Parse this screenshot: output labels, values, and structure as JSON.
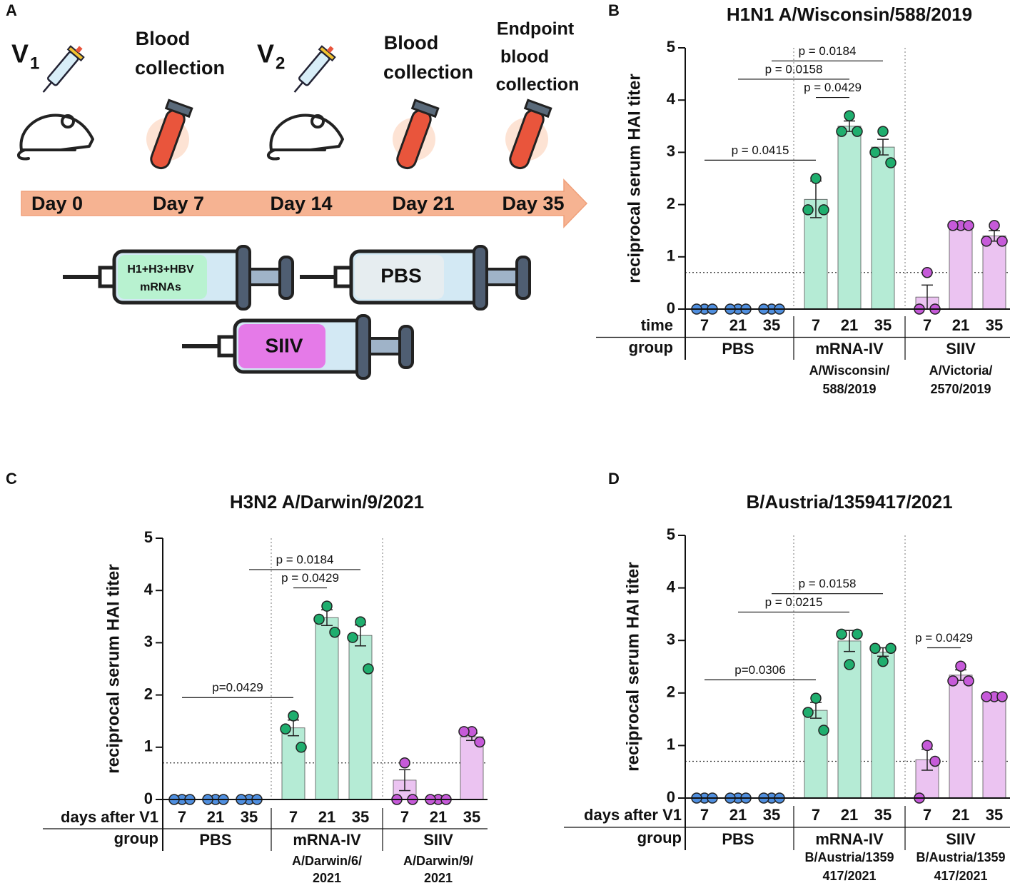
{
  "timeline": {
    "letter": "A",
    "vaccinations": [
      {
        "label": "V",
        "sub": "1"
      },
      {
        "label": "V",
        "sub": "2"
      }
    ],
    "collections": [
      [
        "Blood",
        "collection"
      ],
      [
        "Blood",
        "collection"
      ],
      [
        "Endpoint",
        "blood",
        "collection"
      ]
    ],
    "days": [
      "Day 0",
      "Day 7",
      "Day 14",
      "Day 21",
      "Day 35"
    ],
    "syringes": [
      [
        "H1+H3+HBV",
        "mRNAs"
      ],
      [
        "PBS"
      ],
      [
        "SIIV"
      ]
    ]
  },
  "chart_data": [
    {
      "type": "bar",
      "panel": "B",
      "title": "H1N1 A/Wisconsin/588/2019",
      "ylabel": "reciprocal serum HAI titer",
      "ylim": [
        0,
        5
      ],
      "yticks": [
        0,
        1,
        2,
        3,
        4,
        5
      ],
      "threshold": 0.7,
      "row_labels": [
        "time",
        "group"
      ],
      "categories": [
        "7",
        "21",
        "35",
        "7",
        "21",
        "35",
        "7",
        "21",
        "35"
      ],
      "groups": [
        {
          "name": "PBS",
          "bar_color": "#ffffff",
          "point_color": "#4f8fe0"
        },
        {
          "name": "mRNA-IV",
          "bar_color": "#b5ebd5",
          "point_color": "#1fae6e",
          "subtitle": [
            "A/Wisconsin/",
            "588/2019"
          ],
          "subtitle_color": "#1a9e5f"
        },
        {
          "name": "SIIV",
          "bar_color": "#ebc3f1",
          "point_color": "#c65ad9",
          "subtitle": [
            "A/Victoria/",
            "2570/2019"
          ],
          "subtitle_color": "#c056d4"
        }
      ],
      "values": [
        0,
        0,
        0,
        2.1,
        3.5,
        3.1,
        0.23,
        1.6,
        1.4
      ],
      "errors": [
        0,
        0,
        0,
        0.35,
        0.1,
        0.15,
        0.23,
        0,
        0.1
      ],
      "points": [
        [
          0,
          0,
          0
        ],
        [
          0,
          0,
          0
        ],
        [
          0,
          0,
          0
        ],
        [
          2.5,
          1.9,
          1.9
        ],
        [
          3.7,
          3.4,
          3.4
        ],
        [
          3.4,
          3.0,
          2.8
        ],
        [
          0.7,
          0,
          0
        ],
        [
          1.6,
          1.6,
          1.6
        ],
        [
          1.6,
          1.3,
          1.3
        ]
      ],
      "comparisons": [
        {
          "label": "p = 0.0415",
          "from": 0,
          "to": 3
        },
        {
          "label": "p = 0.0429",
          "from": 3,
          "to": 4
        },
        {
          "label": "p = 0.0158",
          "from": 1,
          "to": 4
        },
        {
          "label": "p = 0.0184",
          "from": 2,
          "to": 5
        }
      ]
    },
    {
      "type": "bar",
      "panel": "C",
      "title": "H3N2 A/Darwin/9/2021",
      "ylabel": "reciprocal serum HAI titer",
      "ylim": [
        0,
        5
      ],
      "yticks": [
        0,
        1,
        2,
        3,
        4,
        5
      ],
      "threshold": 0.7,
      "row_labels": [
        "days after V1",
        "group"
      ],
      "categories": [
        "7",
        "21",
        "35",
        "7",
        "21",
        "35",
        "7",
        "21",
        "35"
      ],
      "groups": [
        {
          "name": "PBS",
          "bar_color": "#ffffff",
          "point_color": "#4f8fe0"
        },
        {
          "name": "mRNA-IV",
          "bar_color": "#b5ebd5",
          "point_color": "#1fae6e",
          "subtitle": [
            "A/Darwin/6/",
            "2021"
          ],
          "subtitle_color": "#1a9e5f"
        },
        {
          "name": "SIIV",
          "bar_color": "#ebc3f1",
          "point_color": "#c65ad9",
          "subtitle": [
            "A/Darwin/9/",
            "2021"
          ],
          "subtitle_color": "#c056d4"
        }
      ],
      "values": [
        0,
        0,
        0,
        1.37,
        3.48,
        3.14,
        0.37,
        0,
        1.2
      ],
      "errors": [
        0,
        0,
        0,
        0.15,
        0.15,
        0.2,
        0.2,
        0,
        0.07
      ],
      "points": [
        [
          0,
          0,
          0
        ],
        [
          0,
          0,
          0
        ],
        [
          0,
          0,
          0
        ],
        [
          1.6,
          1.35,
          1.0
        ],
        [
          3.7,
          3.45,
          3.2
        ],
        [
          3.4,
          3.1,
          2.5
        ],
        [
          0.7,
          0,
          0
        ],
        [
          0,
          0,
          0
        ],
        [
          1.3,
          1.3,
          1.1
        ]
      ],
      "comparisons": [
        {
          "label": "p=0.0429",
          "from": 0,
          "to": 3
        },
        {
          "label": "p = 0.0429",
          "from": 3,
          "to": 4
        },
        {
          "label": "p = 0.0184",
          "from": 2,
          "to": 5
        }
      ]
    },
    {
      "type": "bar",
      "panel": "D",
      "title": "B/Austria/1359417/2021",
      "ylabel": "reciprocal serum HAI titer",
      "ylim": [
        0,
        5
      ],
      "yticks": [
        0,
        1,
        2,
        3,
        4,
        5
      ],
      "threshold": 0.7,
      "row_labels": [
        "days after V1",
        "group"
      ],
      "categories": [
        "7",
        "21",
        "35",
        "7",
        "21",
        "35",
        "7",
        "21",
        "35"
      ],
      "groups": [
        {
          "name": "PBS",
          "bar_color": "#ffffff",
          "point_color": "#4f8fe0"
        },
        {
          "name": "mRNA-IV",
          "bar_color": "#b5ebd5",
          "point_color": "#1fae6e",
          "subtitle": [
            "B/Austria/1359",
            "417/2021"
          ],
          "subtitle_color": "#1a9e5f"
        },
        {
          "name": "SIIV",
          "bar_color": "#ebc3f1",
          "point_color": "#c65ad9",
          "subtitle": [
            "B/Austria/1359",
            "417/2021"
          ],
          "subtitle_color": "#c056d4"
        }
      ],
      "values": [
        0,
        0,
        0,
        1.67,
        2.99,
        2.78,
        0.73,
        2.34,
        1.93
      ],
      "errors": [
        0,
        0,
        0,
        0.15,
        0.2,
        0.08,
        0.2,
        0.1,
        0
      ],
      "points": [
        [
          0,
          0,
          0
        ],
        [
          0,
          0,
          0
        ],
        [
          0,
          0,
          0
        ],
        [
          1.9,
          1.63,
          1.29
        ],
        [
          2.54,
          3.12,
          3.12
        ],
        [
          2.6,
          2.85,
          2.85
        ],
        [
          1.0,
          0,
          0.7
        ],
        [
          2.51,
          2.23,
          2.23
        ],
        [
          1.93,
          1.93,
          1.93
        ]
      ],
      "comparisons": [
        {
          "label": "p=0.0306",
          "from": 0,
          "to": 3
        },
        {
          "label": "p = 0.0429",
          "from": 6,
          "to": 7
        },
        {
          "label": "p = 0.0215",
          "from": 1,
          "to": 4
        },
        {
          "label": "p = 0.0158",
          "from": 2,
          "to": 5
        }
      ]
    }
  ]
}
